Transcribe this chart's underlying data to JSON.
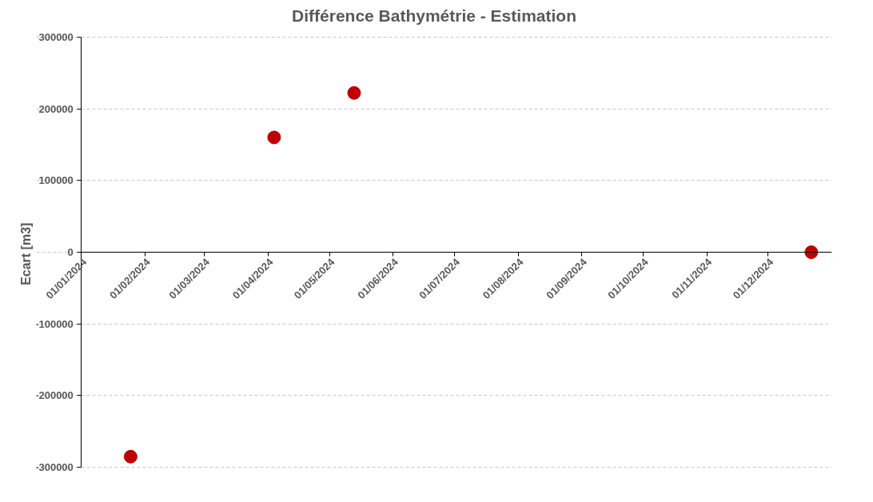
{
  "chart_data": {
    "type": "scatter",
    "title": "Différence Bathymétrie - Estimation",
    "ylabel": "Ecart  [m3]",
    "x": [
      "2024-01-25",
      "2024-04-04",
      "2024-05-13",
      "2024-12-22"
    ],
    "series": [
      {
        "color": "#c00000",
        "values": [
          -285000,
          160000,
          222000,
          0
        ]
      }
    ],
    "xlim": [
      "2024-01-01",
      "2025-01-01"
    ],
    "xticks": [
      {
        "value": "2024-01-01",
        "label": "01/01/2024"
      },
      {
        "value": "2024-02-01",
        "label": "01/02/2024"
      },
      {
        "value": "2024-03-01",
        "label": "01/03/2024"
      },
      {
        "value": "2024-04-01",
        "label": "01/04/2024"
      },
      {
        "value": "2024-05-01",
        "label": "01/05/2024"
      },
      {
        "value": "2024-06-01",
        "label": "01/06/2024"
      },
      {
        "value": "2024-07-01",
        "label": "01/07/2024"
      },
      {
        "value": "2024-08-01",
        "label": "01/08/2024"
      },
      {
        "value": "2024-09-01",
        "label": "01/09/2024"
      },
      {
        "value": "2024-10-01",
        "label": "01/10/2024"
      },
      {
        "value": "2024-11-01",
        "label": "01/11/2024"
      },
      {
        "value": "2024-12-01",
        "label": "01/12/2024"
      }
    ],
    "ylim": [
      -300000,
      300000
    ],
    "yticks": [
      -300000,
      -200000,
      -100000,
      0,
      100000,
      200000,
      300000
    ],
    "grid": "y",
    "marker": "circle"
  }
}
